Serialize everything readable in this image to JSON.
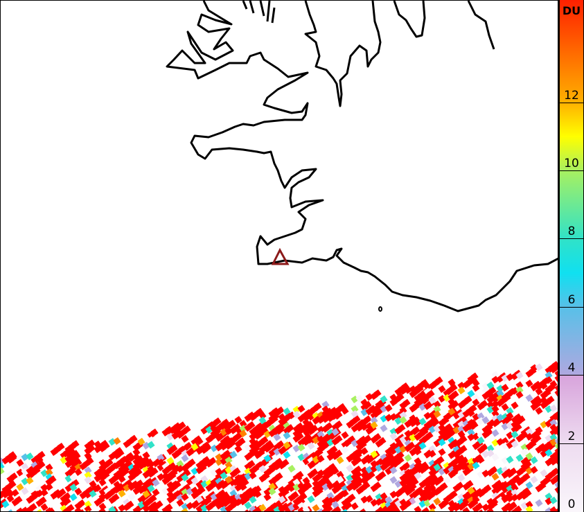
{
  "map": {
    "coastline_color": "#000000",
    "volcano_marker": {
      "icon": "triangle-outline",
      "color": "#8b1a1a"
    },
    "data_swath_dominant_color": "#ff0000"
  },
  "colorbar": {
    "unit": "DU",
    "min": 0,
    "max": 15,
    "ticks": [
      {
        "value": 0,
        "label": "0"
      },
      {
        "value": 2,
        "label": "2"
      },
      {
        "value": 4,
        "label": "4"
      },
      {
        "value": 6,
        "label": "6"
      },
      {
        "value": 8,
        "label": "8"
      },
      {
        "value": 10,
        "label": "10"
      },
      {
        "value": 12,
        "label": "12"
      }
    ],
    "color_stops": [
      {
        "value": 0,
        "color": "#faf6fb"
      },
      {
        "value": 2,
        "color": "#eedcf0"
      },
      {
        "value": 3.99,
        "color": "#d8a4dc"
      },
      {
        "value": 4,
        "color": "#b0a8e0"
      },
      {
        "value": 6,
        "color": "#58c0e8"
      },
      {
        "value": 7,
        "color": "#10e0f0"
      },
      {
        "value": 8,
        "color": "#30e2c8"
      },
      {
        "value": 10,
        "color": "#a8f060"
      },
      {
        "value": 11,
        "color": "#ffff00"
      },
      {
        "value": 12,
        "color": "#ffb000"
      },
      {
        "value": 13,
        "color": "#ff8000"
      },
      {
        "value": 15,
        "color": "#ff2000"
      }
    ]
  }
}
